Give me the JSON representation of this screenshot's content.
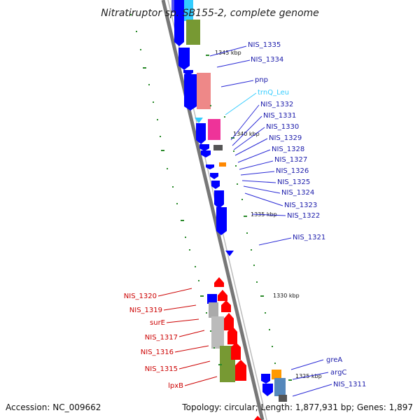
{
  "title": "Nitratiruptor sp. SB155-2, complete genome",
  "accession_text": "Accession: NC_009662",
  "topology_text": "Topology: circular; Length: 1,877,931 bp; Genes: 1,897",
  "colors": {
    "forward_cds": "#0000ff",
    "reverse_cds": "#ff0000",
    "trna": "#33ccff",
    "forward_label": "#1a1aaa",
    "reverse_label": "#cc0000",
    "trna_label": "#33ccff"
  },
  "scale_labels": [
    "1345 kbp",
    "1340 kbp",
    "1335 kbp",
    "1330 kbp",
    "1325 kbp"
  ],
  "forward_labels": [
    "NIS_1335",
    "NIS_1334",
    "pnp",
    "trnQ_Leu",
    "NIS_1332",
    "NIS_1331",
    "NIS_1330",
    "NIS_1329",
    "NIS_1328",
    "NIS_1327",
    "NIS_1326",
    "NIS_1325",
    "NIS_1324",
    "NIS_1323",
    "NIS_1322",
    "NIS_1321",
    "greA",
    "argC",
    "NIS_1311"
  ],
  "reverse_labels": [
    "NIS_1320",
    "NIS_1319",
    "surE",
    "NIS_1317",
    "NIS_1316",
    "NIS_1315",
    "lpxB"
  ]
}
